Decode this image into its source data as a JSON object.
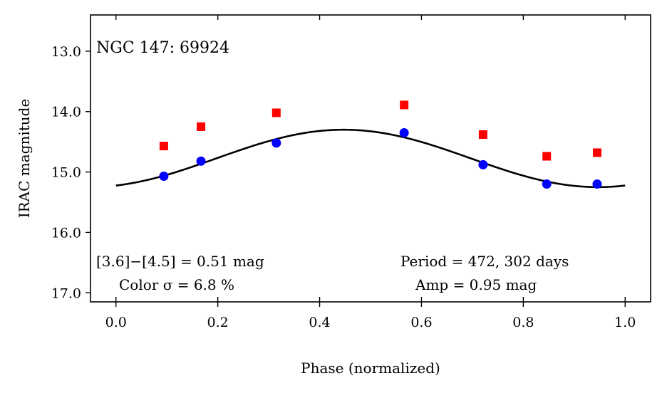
{
  "chart_data": {
    "type": "scatter",
    "title": "NGC 147:  69924",
    "xlabel": "Phase (normalized)",
    "ylabel": "IRAC magnitude",
    "xlim": [
      -0.05,
      1.05
    ],
    "ylim": [
      17.15,
      12.4
    ],
    "y_inverted": true,
    "grid": false,
    "x_ticks": [
      0.0,
      0.2,
      0.4,
      0.6,
      0.8,
      1.0
    ],
    "x_tick_labels": [
      "0.0",
      "0.2",
      "0.4",
      "0.6",
      "0.8",
      "1.0"
    ],
    "y_ticks": [
      13.0,
      14.0,
      15.0,
      16.0,
      17.0
    ],
    "y_tick_labels": [
      "13.0",
      "14.0",
      "15.0",
      "16.0",
      "17.0"
    ],
    "series": [
      {
        "marker": "square",
        "color": "#ff0000",
        "x": [
          0.094,
          0.167,
          0.315,
          0.566,
          0.721,
          0.846,
          0.945
        ],
        "y": [
          14.57,
          14.25,
          14.02,
          13.89,
          14.38,
          14.74,
          14.68
        ]
      },
      {
        "marker": "circle",
        "color": "#0000ff",
        "x": [
          0.094,
          0.167,
          0.315,
          0.566,
          0.721,
          0.846,
          0.945
        ],
        "y": [
          15.07,
          14.82,
          14.52,
          14.35,
          14.88,
          15.2,
          15.2
        ]
      },
      {
        "marker": "line",
        "color": "#000000",
        "model": "sinusoid",
        "mean": 14.775,
        "amplitude": 0.475,
        "peak_phase": 0.447,
        "x_range": [
          0.0,
          1.0
        ]
      }
    ],
    "annotations": {
      "color_index": "[3.6]−[4.5] = 0.51 mag",
      "color_sigma": "Color σ = 6.8 %",
      "period": "Period = 472, 302 days",
      "amplitude": "Amp = 0.95 mag"
    }
  }
}
